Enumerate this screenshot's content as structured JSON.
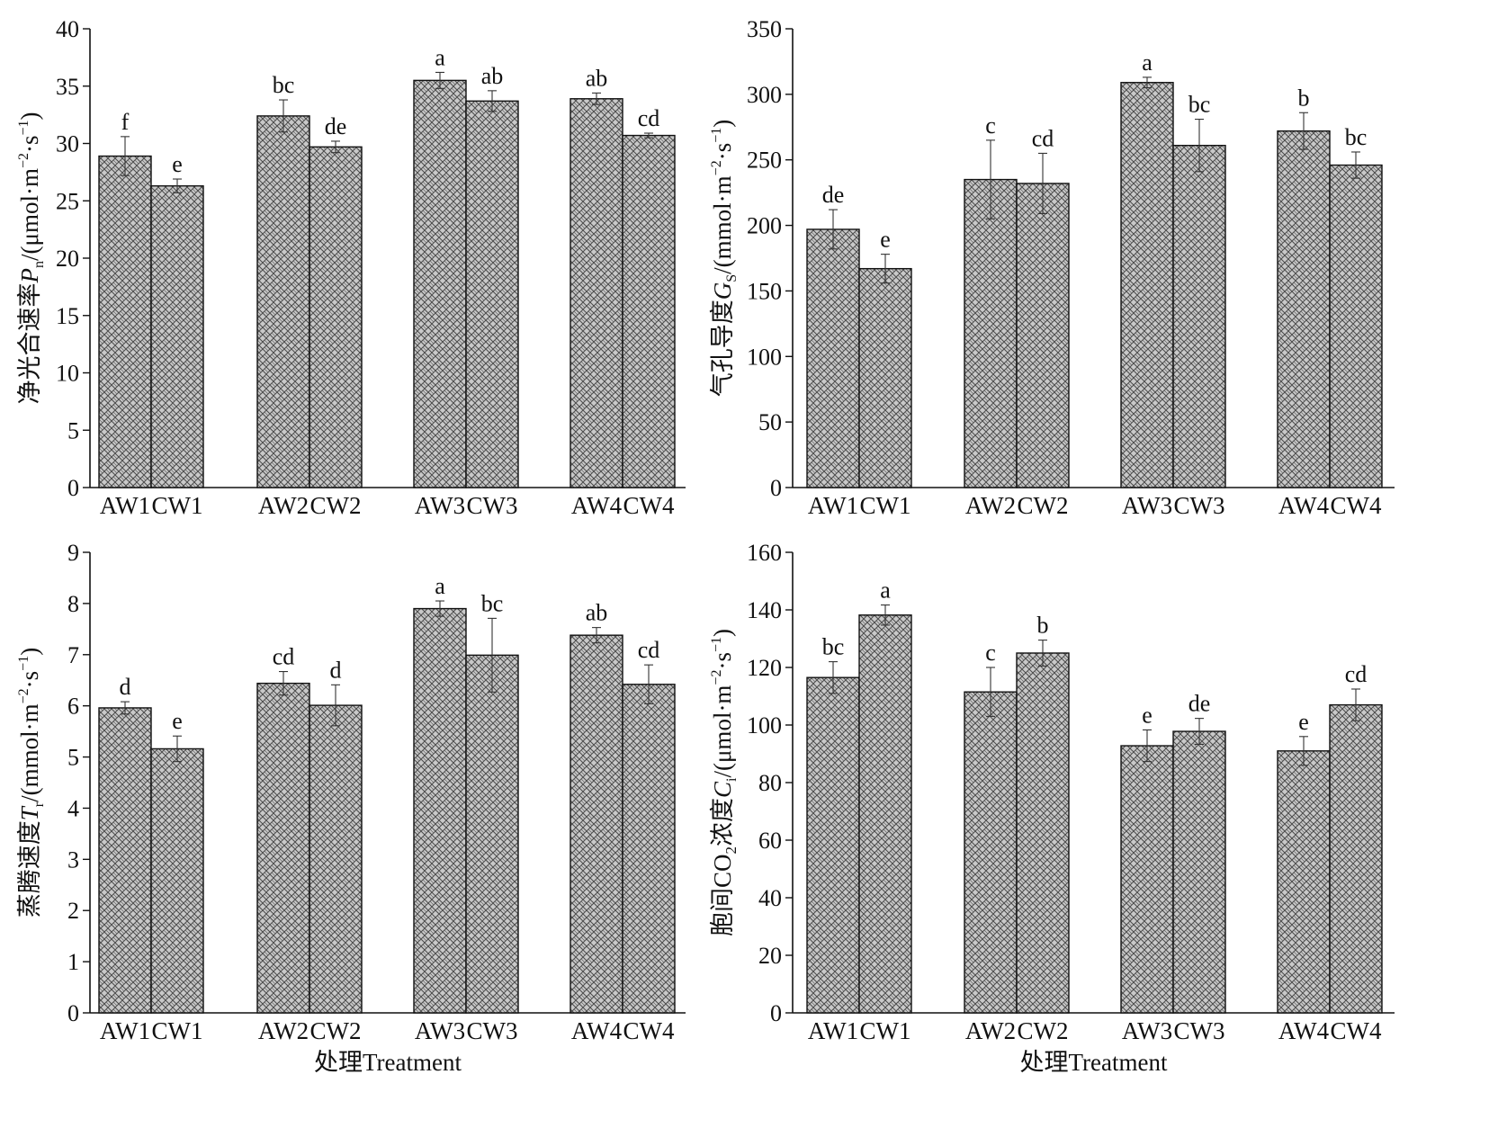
{
  "chart_data": [
    {
      "type": "bar",
      "ylabel": {
        "prefix": "净光合速率",
        "var": "P",
        "sub": "n",
        "unit_pre": "/(μmol·m",
        "sup1": "−2",
        "unit_mid": "·s",
        "sup2": "−1",
        "unit_post": ")"
      },
      "xlabel": "",
      "ylim": [
        0,
        40
      ],
      "yticks": [
        0,
        5,
        10,
        15,
        20,
        25,
        30,
        35,
        40
      ],
      "categories": [
        "AW1",
        "CW1",
        "AW2",
        "CW2",
        "AW3",
        "CW3",
        "AW4",
        "CW4"
      ],
      "values": [
        28.9,
        26.3,
        32.4,
        29.7,
        35.5,
        33.7,
        33.9,
        30.7
      ],
      "errors": [
        1.7,
        0.6,
        1.4,
        0.5,
        0.7,
        0.9,
        0.5,
        0.2
      ],
      "labels": [
        "f",
        "e",
        "bc",
        "de",
        "a",
        "ab",
        "ab",
        "cd"
      ]
    },
    {
      "type": "bar",
      "ylabel": {
        "prefix": "气孔导度",
        "var": "G",
        "sub": "S",
        "unit_pre": "/(mmol·m",
        "sup1": "−2",
        "unit_mid": "·s",
        "sup2": "−1",
        "unit_post": ")"
      },
      "xlabel": "",
      "ylim": [
        0,
        350
      ],
      "yticks": [
        0,
        50,
        100,
        150,
        200,
        250,
        300,
        350
      ],
      "categories": [
        "AW1",
        "CW1",
        "AW2",
        "CW2",
        "AW3",
        "CW3",
        "AW4",
        "CW4"
      ],
      "values": [
        197,
        167,
        235,
        232,
        309,
        261,
        272,
        246
      ],
      "errors": [
        15,
        11,
        30,
        23,
        4,
        20,
        14,
        10
      ],
      "labels": [
        "de",
        "e",
        "c",
        "cd",
        "a",
        "bc",
        "b",
        "bc"
      ]
    },
    {
      "type": "bar",
      "ylabel": {
        "prefix": "蒸腾速度",
        "var": "T",
        "sub": "r",
        "unit_pre": "/(mmol·m",
        "sup1": "−2",
        "unit_mid": "·s",
        "sup2": "−1",
        "unit_post": ")"
      },
      "xlabel": "处理Treatment",
      "ylim": [
        0,
        9
      ],
      "yticks": [
        0,
        1,
        2,
        3,
        4,
        5,
        6,
        7,
        8,
        9
      ],
      "categories": [
        "AW1",
        "CW1",
        "AW2",
        "CW2",
        "AW3",
        "CW3",
        "AW4",
        "CW4"
      ],
      "values": [
        5.96,
        5.16,
        6.44,
        6.01,
        7.9,
        6.99,
        7.38,
        6.42
      ],
      "errors": [
        0.12,
        0.25,
        0.23,
        0.4,
        0.15,
        0.72,
        0.15,
        0.38
      ],
      "labels": [
        "d",
        "e",
        "cd",
        "d",
        "a",
        "bc",
        "ab",
        "cd"
      ]
    },
    {
      "type": "bar",
      "ylabel": {
        "prefix": "胞间CO",
        "prefix_sub": "2",
        "prefix_post": "浓度",
        "var": "C",
        "sub": "i",
        "unit_pre": "/(μmol·m",
        "sup1": "−2",
        "unit_mid": "·s",
        "sup2": "−1",
        "unit_post": ")"
      },
      "xlabel": "处理Treatment",
      "ylim": [
        0,
        160
      ],
      "yticks": [
        0,
        20,
        40,
        60,
        80,
        100,
        120,
        140,
        160
      ],
      "categories": [
        "AW1",
        "CW1",
        "AW2",
        "CW2",
        "AW3",
        "CW3",
        "AW4",
        "CW4"
      ],
      "values": [
        116.5,
        138.2,
        111.5,
        125.0,
        92.8,
        97.8,
        91.0,
        107.0
      ],
      "errors": [
        5.5,
        3.5,
        8.5,
        4.5,
        5.5,
        4.5,
        5.0,
        5.5
      ],
      "labels": [
        "bc",
        "a",
        "c",
        "b",
        "e",
        "de",
        "e",
        "cd"
      ]
    }
  ],
  "colors": {
    "bar_fill": "#c8c8c8",
    "bar_pattern": "#3a3a3a",
    "axis": "#111111"
  }
}
